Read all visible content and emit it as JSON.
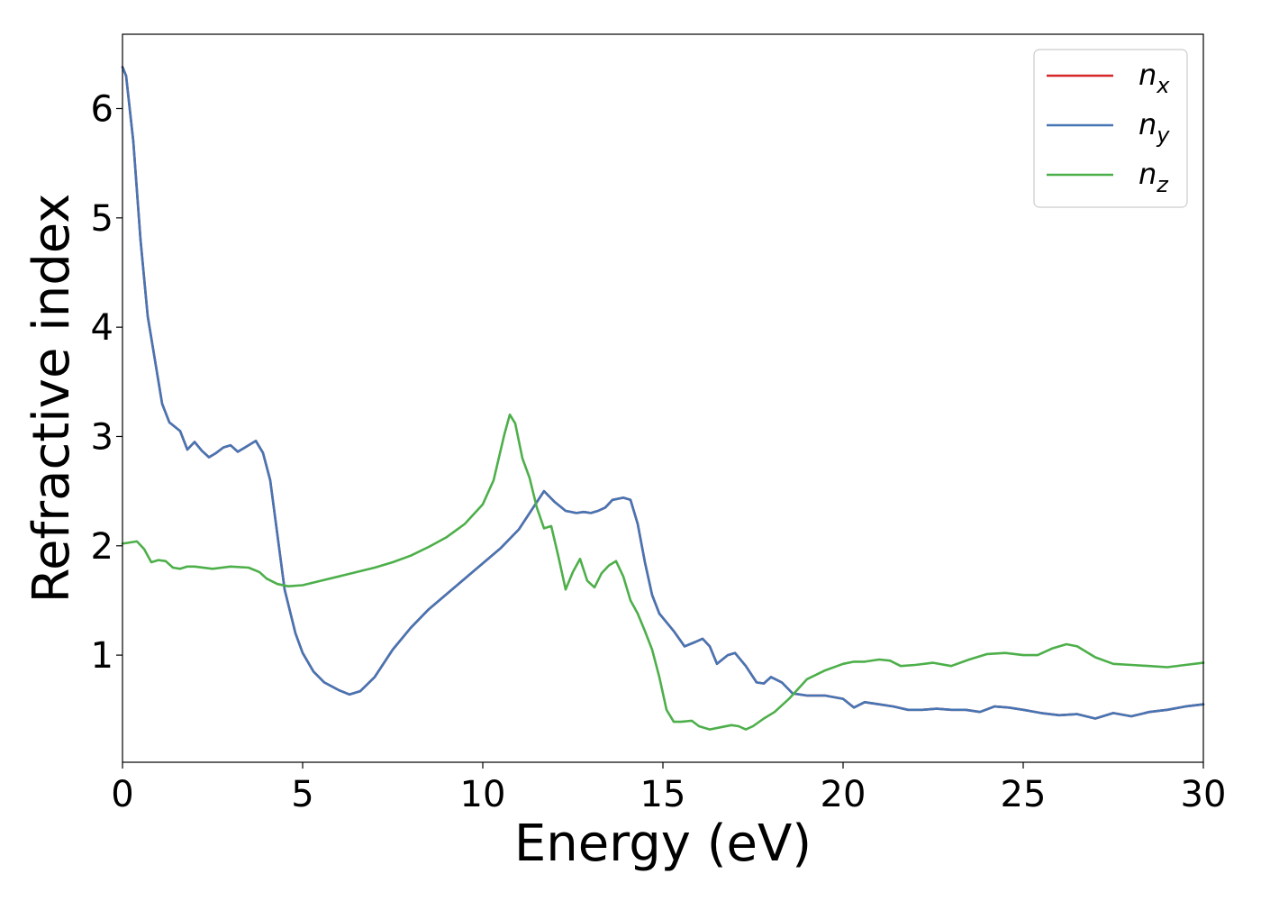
{
  "chart_data": {
    "type": "line",
    "title": "",
    "xlabel": "Energy (eV)",
    "ylabel": "Refractive index",
    "xlim": [
      0,
      30
    ],
    "ylim": [
      0.02,
      6.68
    ],
    "xticks": [
      0,
      5,
      10,
      15,
      20,
      25,
      30
    ],
    "xtick_labels": [
      "0",
      "5",
      "10",
      "15",
      "20",
      "25",
      "30"
    ],
    "yticks": [
      1,
      2,
      3,
      4,
      5,
      6
    ],
    "ytick_labels": [
      "1",
      "2",
      "3",
      "4",
      "5",
      "6"
    ],
    "grid": false,
    "legend_position": "top-right",
    "colors": {
      "n_x": "#d62728",
      "n_y": "#4575b4",
      "n_z": "#4daf4a"
    },
    "series": [
      {
        "name": "n_x",
        "legend_base": "n",
        "legend_sub": "x",
        "color": "#d62728",
        "x": [
          0,
          0.1,
          0.3,
          0.5,
          0.7,
          0.9,
          1.1,
          1.3,
          1.6,
          1.8,
          2.0,
          2.2,
          2.4,
          2.6,
          2.8,
          3.0,
          3.2,
          3.4,
          3.7,
          3.9,
          4.1,
          4.3,
          4.5,
          4.8,
          5.0,
          5.3,
          5.6,
          6.0,
          6.3,
          6.6,
          7.0,
          7.5,
          8.0,
          8.5,
          9.0,
          9.5,
          10.0,
          10.5,
          11.0,
          11.4,
          11.7,
          12.0,
          12.3,
          12.6,
          12.8,
          13.0,
          13.2,
          13.4,
          13.6,
          13.9,
          14.1,
          14.3,
          14.5,
          14.7,
          14.9,
          15.1,
          15.3,
          15.6,
          15.9,
          16.1,
          16.3,
          16.5,
          16.8,
          17.0,
          17.3,
          17.6,
          17.8,
          18.0,
          18.3,
          18.6,
          19.0,
          19.5,
          20.0,
          20.3,
          20.6,
          21.0,
          21.4,
          21.8,
          22.2,
          22.6,
          23.0,
          23.4,
          23.8,
          24.2,
          24.6,
          25.0,
          25.5,
          26.0,
          26.5,
          27.0,
          27.5,
          28.0,
          28.5,
          29.0,
          29.5,
          30.0
        ],
        "y": [
          6.38,
          6.3,
          5.7,
          4.8,
          4.1,
          3.7,
          3.3,
          3.13,
          3.05,
          2.88,
          2.95,
          2.87,
          2.81,
          2.85,
          2.9,
          2.92,
          2.86,
          2.9,
          2.96,
          2.85,
          2.6,
          2.1,
          1.6,
          1.2,
          1.02,
          0.85,
          0.75,
          0.68,
          0.64,
          0.67,
          0.8,
          1.05,
          1.25,
          1.42,
          1.56,
          1.7,
          1.84,
          1.98,
          2.15,
          2.35,
          2.5,
          2.4,
          2.32,
          2.3,
          2.31,
          2.3,
          2.32,
          2.35,
          2.42,
          2.44,
          2.42,
          2.2,
          1.85,
          1.55,
          1.38,
          1.3,
          1.22,
          1.08,
          1.12,
          1.15,
          1.08,
          0.92,
          1.0,
          1.02,
          0.9,
          0.75,
          0.74,
          0.8,
          0.75,
          0.65,
          0.63,
          0.63,
          0.6,
          0.52,
          0.57,
          0.55,
          0.53,
          0.5,
          0.5,
          0.51,
          0.5,
          0.5,
          0.48,
          0.53,
          0.52,
          0.5,
          0.47,
          0.45,
          0.46,
          0.42,
          0.47,
          0.44,
          0.48,
          0.5,
          0.53,
          0.55
        ]
      },
      {
        "name": "n_y",
        "legend_base": "n",
        "legend_sub": "y",
        "color": "#4575b4",
        "x": [
          0,
          0.1,
          0.3,
          0.5,
          0.7,
          0.9,
          1.1,
          1.3,
          1.6,
          1.8,
          2.0,
          2.2,
          2.4,
          2.6,
          2.8,
          3.0,
          3.2,
          3.4,
          3.7,
          3.9,
          4.1,
          4.3,
          4.5,
          4.8,
          5.0,
          5.3,
          5.6,
          6.0,
          6.3,
          6.6,
          7.0,
          7.5,
          8.0,
          8.5,
          9.0,
          9.5,
          10.0,
          10.5,
          11.0,
          11.4,
          11.7,
          12.0,
          12.3,
          12.6,
          12.8,
          13.0,
          13.2,
          13.4,
          13.6,
          13.9,
          14.1,
          14.3,
          14.5,
          14.7,
          14.9,
          15.1,
          15.3,
          15.6,
          15.9,
          16.1,
          16.3,
          16.5,
          16.8,
          17.0,
          17.3,
          17.6,
          17.8,
          18.0,
          18.3,
          18.6,
          19.0,
          19.5,
          20.0,
          20.3,
          20.6,
          21.0,
          21.4,
          21.8,
          22.2,
          22.6,
          23.0,
          23.4,
          23.8,
          24.2,
          24.6,
          25.0,
          25.5,
          26.0,
          26.5,
          27.0,
          27.5,
          28.0,
          28.5,
          29.0,
          29.5,
          30.0
        ],
        "y": [
          6.38,
          6.3,
          5.7,
          4.8,
          4.1,
          3.7,
          3.3,
          3.13,
          3.05,
          2.88,
          2.95,
          2.87,
          2.81,
          2.85,
          2.9,
          2.92,
          2.86,
          2.9,
          2.96,
          2.85,
          2.6,
          2.1,
          1.6,
          1.2,
          1.02,
          0.85,
          0.75,
          0.68,
          0.64,
          0.67,
          0.8,
          1.05,
          1.25,
          1.42,
          1.56,
          1.7,
          1.84,
          1.98,
          2.15,
          2.35,
          2.5,
          2.4,
          2.32,
          2.3,
          2.31,
          2.3,
          2.32,
          2.35,
          2.42,
          2.44,
          2.42,
          2.2,
          1.85,
          1.55,
          1.38,
          1.3,
          1.22,
          1.08,
          1.12,
          1.15,
          1.08,
          0.92,
          1.0,
          1.02,
          0.9,
          0.75,
          0.74,
          0.8,
          0.75,
          0.65,
          0.63,
          0.63,
          0.6,
          0.52,
          0.57,
          0.55,
          0.53,
          0.5,
          0.5,
          0.51,
          0.5,
          0.5,
          0.48,
          0.53,
          0.52,
          0.5,
          0.47,
          0.45,
          0.46,
          0.42,
          0.47,
          0.44,
          0.48,
          0.5,
          0.53,
          0.55
        ]
      },
      {
        "name": "n_z",
        "legend_base": "n",
        "legend_sub": "z",
        "color": "#4daf4a",
        "x": [
          0,
          0.2,
          0.4,
          0.6,
          0.8,
          1.0,
          1.2,
          1.4,
          1.6,
          1.8,
          2.0,
          2.5,
          3.0,
          3.5,
          3.8,
          4.0,
          4.3,
          4.6,
          5.0,
          5.5,
          6.0,
          6.5,
          7.0,
          7.5,
          8.0,
          8.5,
          9.0,
          9.5,
          10.0,
          10.3,
          10.6,
          10.75,
          10.9,
          11.1,
          11.3,
          11.5,
          11.7,
          11.9,
          12.1,
          12.3,
          12.5,
          12.7,
          12.9,
          13.1,
          13.3,
          13.5,
          13.7,
          13.9,
          14.1,
          14.3,
          14.5,
          14.7,
          14.9,
          15.1,
          15.3,
          15.5,
          15.8,
          16.0,
          16.3,
          16.6,
          16.9,
          17.1,
          17.3,
          17.5,
          17.8,
          18.1,
          18.5,
          19.0,
          19.5,
          20.0,
          20.3,
          20.6,
          21.0,
          21.3,
          21.6,
          22.0,
          22.5,
          23.0,
          23.5,
          24.0,
          24.5,
          25.0,
          25.4,
          25.8,
          26.2,
          26.5,
          27.0,
          27.5,
          28.0,
          28.5,
          29.0,
          29.5,
          30.0
        ],
        "y": [
          2.02,
          2.03,
          2.04,
          1.97,
          1.85,
          1.87,
          1.86,
          1.8,
          1.79,
          1.81,
          1.81,
          1.79,
          1.81,
          1.8,
          1.76,
          1.7,
          1.65,
          1.63,
          1.64,
          1.68,
          1.72,
          1.76,
          1.8,
          1.85,
          1.91,
          1.99,
          2.08,
          2.2,
          2.38,
          2.6,
          3.02,
          3.2,
          3.12,
          2.8,
          2.62,
          2.35,
          2.16,
          2.18,
          1.9,
          1.6,
          1.76,
          1.88,
          1.68,
          1.62,
          1.75,
          1.82,
          1.86,
          1.72,
          1.5,
          1.38,
          1.22,
          1.05,
          0.8,
          0.5,
          0.39,
          0.39,
          0.4,
          0.35,
          0.32,
          0.34,
          0.36,
          0.35,
          0.32,
          0.35,
          0.42,
          0.48,
          0.6,
          0.78,
          0.86,
          0.92,
          0.94,
          0.94,
          0.96,
          0.95,
          0.9,
          0.91,
          0.93,
          0.9,
          0.96,
          1.01,
          1.02,
          1.0,
          1.0,
          1.06,
          1.1,
          1.08,
          0.98,
          0.92,
          0.91,
          0.9,
          0.89,
          0.91,
          0.93
        ]
      }
    ]
  }
}
